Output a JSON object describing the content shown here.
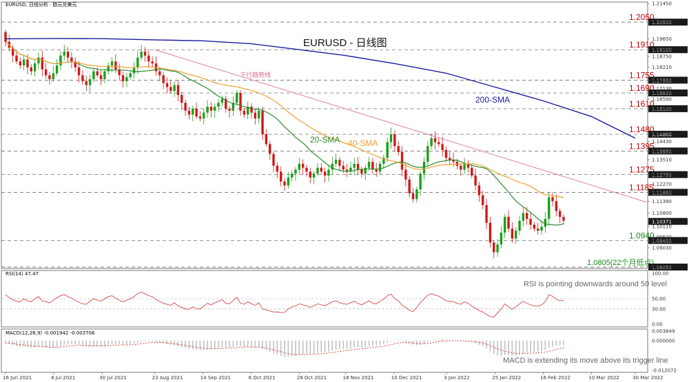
{
  "header": {
    "symbol_line": "EURUSD, 日线分析 · 欧元兑美元"
  },
  "chart_data": [
    {
      "type": "candlestick",
      "title": "EURUSD - 日线图",
      "ylim": [
        1.0805,
        1.2145
      ],
      "x_ticks": [
        "16 Jun 2021",
        "8 Jul 2021",
        "30 Jul 2021",
        "23 Aug 2021",
        "14 Sep 2021",
        "6 Oct 2021",
        "28 Oct 2021",
        "18 Nov 2021",
        "10 Dec 2021",
        "3 Jan 2022",
        "25 Jan 2022",
        "16 Feb 2022",
        "10 Mar 2022",
        "30 Mar 2022"
      ],
      "y_ticks": [
        "1.21450",
        "1.20500",
        "1.19650",
        "1.19100",
        "1.18750",
        "1.18210",
        "1.17550",
        "1.17130",
        "1.16900",
        "1.16590",
        "1.16100",
        "1.14830",
        "1.14430",
        "1.13950",
        "1.13510",
        "1.12750",
        "1.12270",
        "1.11850",
        "1.11390",
        "1.10800",
        "1.10110",
        "1.09570",
        "1.09400",
        "1.09030",
        "1.08050"
      ],
      "levels": [
        {
          "label": "1.2050",
          "value": 1.205
        },
        {
          "label": "1.1910",
          "value": 1.191
        },
        {
          "label": "1.1755",
          "value": 1.1755
        },
        {
          "label": "1.1690",
          "value": 1.169
        },
        {
          "label": "1.1610",
          "value": 1.161
        },
        {
          "label": "1.1480",
          "value": 1.148
        },
        {
          "label": "1.1395",
          "value": 1.1395
        },
        {
          "label": "1.1275",
          "value": 1.1275
        },
        {
          "label": "1.1185",
          "value": 1.1185
        },
        {
          "label": "1.0940",
          "value": 1.094
        },
        {
          "label": "1.0805(22个月低点)",
          "value": 1.0805
        }
      ],
      "price_tag": {
        "label": "1.10371",
        "value": 1.10371
      },
      "annotations": {
        "trendline_label": "下行趋势线",
        "sma20": "20-SMA",
        "sma40": "40-SMA",
        "sma200": "200-SMA"
      },
      "colors": {
        "sma20": "#2e8b2e",
        "sma40": "#f0a030",
        "sma200": "#1a1aa0",
        "trendline": "#e38aa6",
        "level": "#c00000",
        "bull": "#1aa01a",
        "bear": "#d01818"
      },
      "trendline": [
        {
          "x": "23 Aug 2021",
          "y": 1.191
        },
        {
          "x": "4 Apr 2022",
          "y": 1.1135
        }
      ],
      "sma200": [
        {
          "x": "16 Jun 2021",
          "y": 1.1965
        },
        {
          "x": "8 Jul 2021",
          "y": 1.1967
        },
        {
          "x": "30 Jul 2021",
          "y": 1.1966
        },
        {
          "x": "23 Aug 2021",
          "y": 1.196
        },
        {
          "x": "14 Sep 2021",
          "y": 1.1955
        },
        {
          "x": "6 Oct 2021",
          "y": 1.194
        },
        {
          "x": "28 Oct 2021",
          "y": 1.191
        },
        {
          "x": "18 Nov 2021",
          "y": 1.188
        },
        {
          "x": "10 Dec 2021",
          "y": 1.184
        },
        {
          "x": "3 Jan 2022",
          "y": 1.179
        },
        {
          "x": "25 Jan 2022",
          "y": 1.172
        },
        {
          "x": "16 Feb 2022",
          "y": 1.165
        },
        {
          "x": "10 Mar 2022",
          "y": 1.157
        },
        {
          "x": "30 Mar 2022",
          "y": 1.146
        }
      ],
      "closes": [
        1.195,
        1.192,
        1.188,
        1.185,
        1.183,
        1.186,
        1.182,
        1.18,
        1.184,
        1.187,
        1.181,
        1.178,
        1.176,
        1.179,
        1.183,
        1.188,
        1.19,
        1.187,
        1.185,
        1.182,
        1.178,
        1.175,
        1.173,
        1.176,
        1.18,
        1.178,
        1.176,
        1.18,
        1.183,
        1.185,
        1.181,
        1.178,
        1.175,
        1.177,
        1.179,
        1.182,
        1.187,
        1.19,
        1.188,
        1.185,
        1.184,
        1.18,
        1.178,
        1.174,
        1.172,
        1.17,
        1.173,
        1.168,
        1.164,
        1.16,
        1.158,
        1.161,
        1.157,
        1.156,
        1.159,
        1.162,
        1.16,
        1.162,
        1.164,
        1.166,
        1.161,
        1.16,
        1.164,
        1.169,
        1.16,
        1.158,
        1.162,
        1.159,
        1.156,
        1.16,
        1.148,
        1.143,
        1.138,
        1.132,
        1.129,
        1.124,
        1.122,
        1.126,
        1.128,
        1.13,
        1.133,
        1.131,
        1.129,
        1.126,
        1.128,
        1.131,
        1.129,
        1.127,
        1.13,
        1.133,
        1.135,
        1.132,
        1.13,
        1.129,
        1.131,
        1.133,
        1.13,
        1.128,
        1.131,
        1.134,
        1.13,
        1.129,
        1.133,
        1.136,
        1.144,
        1.148,
        1.142,
        1.139,
        1.13,
        1.125,
        1.118,
        1.115,
        1.12,
        1.128,
        1.134,
        1.142,
        1.146,
        1.144,
        1.143,
        1.14,
        1.136,
        1.135,
        1.134,
        1.132,
        1.13,
        1.133,
        1.131,
        1.127,
        1.122,
        1.117,
        1.112,
        1.103,
        1.093,
        1.088,
        1.092,
        1.098,
        1.106,
        1.1,
        1.095,
        1.099,
        1.104,
        1.108,
        1.105,
        1.102,
        1.1,
        1.099,
        1.101,
        1.105,
        1.116,
        1.114,
        1.109,
        1.106,
        1.104
      ]
    },
    {
      "type": "line",
      "title": "RSI(14) 47.47",
      "ylim": [
        0,
        100
      ],
      "y_ticks": [
        "100.00",
        "50.00",
        "30.00",
        "0.00"
      ],
      "annotation": "RSI is pointing downwards around 50 level",
      "values": [
        58,
        52,
        48,
        45,
        44,
        50,
        46,
        44,
        50,
        54,
        46,
        44,
        42,
        47,
        52,
        56,
        58,
        54,
        51,
        47,
        43,
        40,
        39,
        45,
        50,
        47,
        45,
        50,
        54,
        56,
        51,
        47,
        44,
        47,
        50,
        54,
        60,
        63,
        60,
        56,
        54,
        48,
        45,
        41,
        39,
        37,
        42,
        36,
        33,
        30,
        29,
        34,
        30,
        30,
        36,
        41,
        38,
        42,
        45,
        48,
        41,
        40,
        46,
        53,
        41,
        39,
        44,
        40,
        37,
        42,
        30,
        28,
        26,
        24,
        24,
        23,
        23,
        30,
        34,
        36,
        40,
        38,
        36,
        33,
        36,
        40,
        38,
        36,
        40,
        44,
        46,
        42,
        40,
        39,
        42,
        45,
        41,
        38,
        42,
        46,
        41,
        40,
        45,
        49,
        56,
        59,
        50,
        46,
        37,
        33,
        27,
        25,
        33,
        42,
        50,
        57,
        60,
        57,
        55,
        51,
        46,
        45,
        44,
        41,
        39,
        44,
        41,
        36,
        31,
        27,
        24,
        19,
        15,
        14,
        22,
        30,
        40,
        34,
        29,
        34,
        40,
        45,
        41,
        38,
        36,
        35,
        38,
        44,
        58,
        55,
        49,
        46,
        47
      ]
    },
    {
      "type": "bar",
      "title": "MACD(12,26,9) -0.001942 -0.003706",
      "ylim": [
        -0.012072,
        0.003849
      ],
      "y_ticks": [
        "0.003849",
        "0.000000",
        "-0.012072"
      ],
      "annotation": "MACD is extending its move above its trigger line",
      "values": [
        -0.001,
        -0.0014,
        -0.0018,
        -0.0022,
        -0.0025,
        -0.0025,
        -0.0027,
        -0.0029,
        -0.0028,
        -0.0026,
        -0.0027,
        -0.0029,
        -0.0031,
        -0.003,
        -0.0027,
        -0.0022,
        -0.0018,
        -0.0016,
        -0.0015,
        -0.0016,
        -0.0018,
        -0.0021,
        -0.0024,
        -0.0024,
        -0.0022,
        -0.0022,
        -0.0023,
        -0.0021,
        -0.0018,
        -0.0015,
        -0.0014,
        -0.0015,
        -0.0017,
        -0.0017,
        -0.0016,
        -0.0013,
        -0.0009,
        -0.0005,
        -0.0003,
        -0.0003,
        -0.0003,
        -0.0005,
        -0.0008,
        -0.0011,
        -0.0015,
        -0.0018,
        -0.002,
        -0.0023,
        -0.0027,
        -0.0031,
        -0.0034,
        -0.0035,
        -0.0037,
        -0.0039,
        -0.0039,
        -0.0037,
        -0.0036,
        -0.0034,
        -0.0031,
        -0.0028,
        -0.0028,
        -0.0028,
        -0.0026,
        -0.0022,
        -0.0023,
        -0.0025,
        -0.0025,
        -0.0026,
        -0.0028,
        -0.0028,
        -0.0034,
        -0.004,
        -0.0046,
        -0.0052,
        -0.0057,
        -0.0062,
        -0.0066,
        -0.0066,
        -0.0065,
        -0.0063,
        -0.0059,
        -0.0057,
        -0.0055,
        -0.0055,
        -0.0053,
        -0.005,
        -0.0048,
        -0.0047,
        -0.0045,
        -0.0041,
        -0.0037,
        -0.0035,
        -0.0034,
        -0.0033,
        -0.0031,
        -0.0028,
        -0.0027,
        -0.0027,
        -0.0025,
        -0.0022,
        -0.0021,
        -0.0021,
        -0.0018,
        -0.0014,
        -0.0008,
        -0.0002,
        0.0001,
        0.0002,
        -0.0002,
        -0.0006,
        -0.0012,
        -0.0017,
        -0.0019,
        -0.0017,
        -0.0013,
        -0.0006,
        0.0,
        0.0003,
        0.0005,
        0.0005,
        0.0003,
        0.0002,
        0.0001,
        -0.0001,
        -0.0003,
        -0.0003,
        -0.0004,
        -0.0007,
        -0.0011,
        -0.0017,
        -0.0023,
        -0.0032,
        -0.0043,
        -0.0054,
        -0.006,
        -0.0062,
        -0.0059,
        -0.006,
        -0.0062,
        -0.0061,
        -0.0058,
        -0.0053,
        -0.005,
        -0.0048,
        -0.0047,
        -0.0046,
        -0.0044,
        -0.004,
        -0.003,
        -0.0024,
        -0.0021,
        -0.0019,
        -0.0019
      ]
    }
  ]
}
